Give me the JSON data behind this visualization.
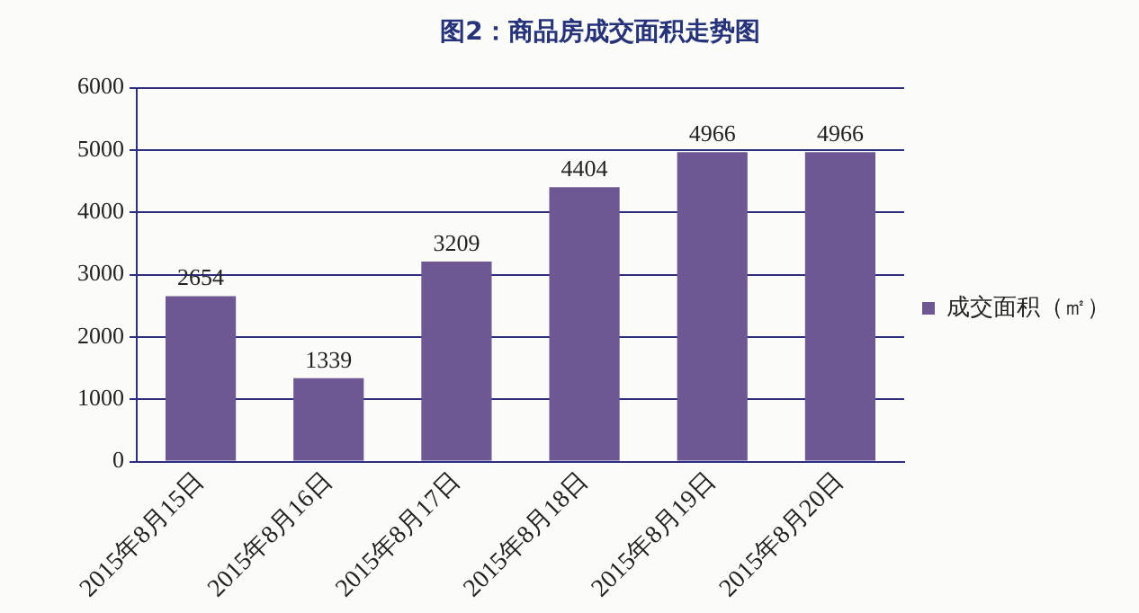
{
  "chart_data": {
    "type": "bar",
    "title": "图2：商品房成交面积走势图",
    "categories": [
      "2015年8月15日",
      "2015年8月16日",
      "2015年8月17日",
      "2015年8月18日",
      "2015年8月19日",
      "2015年8月20日"
    ],
    "series": [
      {
        "name": "成交面积（㎡）",
        "color": "#6e5894",
        "values": [
          2654,
          1339,
          3209,
          4404,
          4966,
          4966
        ]
      }
    ],
    "ylim": [
      0,
      6000
    ],
    "yticks": [
      0,
      1000,
      2000,
      3000,
      4000,
      5000,
      6000
    ],
    "grid": "y",
    "legend": "right",
    "data_labels": true
  }
}
